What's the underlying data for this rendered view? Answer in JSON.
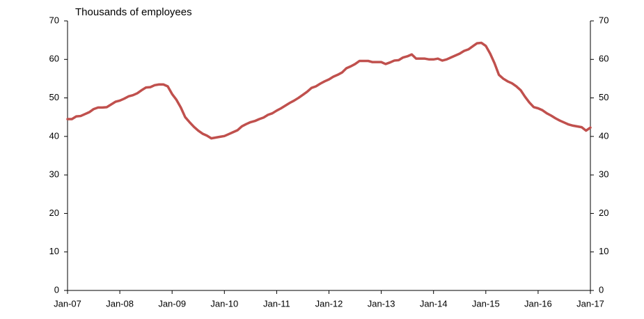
{
  "chart_data": {
    "type": "line",
    "y_label": "Thousands of employees",
    "categories": [
      "Jan-07",
      null,
      null,
      null,
      null,
      null,
      null,
      null,
      null,
      null,
      null,
      null,
      "Jan-08",
      null,
      null,
      null,
      null,
      null,
      null,
      null,
      null,
      null,
      null,
      null,
      "Jan-09",
      null,
      null,
      null,
      null,
      null,
      null,
      null,
      null,
      null,
      null,
      null,
      "Jan-10",
      null,
      null,
      null,
      null,
      null,
      null,
      null,
      null,
      null,
      null,
      null,
      "Jan-11",
      null,
      null,
      null,
      null,
      null,
      null,
      null,
      null,
      null,
      null,
      null,
      "Jan-12",
      null,
      null,
      null,
      null,
      null,
      null,
      null,
      null,
      null,
      null,
      null,
      "Jan-13",
      null,
      null,
      null,
      null,
      null,
      null,
      null,
      null,
      null,
      null,
      null,
      "Jan-14",
      null,
      null,
      null,
      null,
      null,
      null,
      null,
      null,
      null,
      null,
      null,
      "Jan-15",
      null,
      null,
      null,
      null,
      null,
      null,
      null,
      null,
      null,
      null,
      null,
      "Jan-16",
      null,
      null,
      null,
      null,
      null,
      null,
      null,
      null,
      null,
      null,
      null,
      "Jan-17"
    ],
    "series": [
      {
        "color": "#c0504d",
        "values": [
          44.5,
          44.5,
          45.2,
          45.3,
          45.8,
          46.3,
          47.1,
          47.5,
          47.5,
          47.6,
          48.3,
          49.0,
          49.3,
          49.8,
          50.4,
          50.7,
          51.2,
          52.0,
          52.7,
          52.8,
          53.3,
          53.5,
          53.5,
          53.0,
          51.0,
          49.5,
          47.5,
          45.0,
          43.7,
          42.5,
          41.5,
          40.7,
          40.2,
          39.5,
          39.7,
          39.9,
          40.1,
          40.6,
          41.1,
          41.6,
          42.6,
          43.2,
          43.7,
          44.0,
          44.5,
          44.9,
          45.6,
          46.0,
          46.7,
          47.3,
          48.0,
          48.7,
          49.3,
          50.0,
          50.8,
          51.6,
          52.6,
          53.0,
          53.7,
          54.3,
          54.8,
          55.5,
          56.0,
          56.6,
          57.7,
          58.2,
          58.8,
          59.6,
          59.6,
          59.6,
          59.3,
          59.3,
          59.3,
          58.8,
          59.2,
          59.7,
          59.8,
          60.5,
          60.8,
          61.3,
          60.2,
          60.2,
          60.2,
          60.0,
          60.0,
          60.2,
          59.7,
          60.0,
          60.5,
          61.0,
          61.5,
          62.2,
          62.6,
          63.4,
          64.2,
          64.3,
          63.5,
          61.5,
          59.0,
          56.0,
          55.0,
          54.3,
          53.8,
          53.0,
          52.0,
          50.3,
          48.8,
          47.6,
          47.3,
          46.8,
          46.0,
          45.4,
          44.7,
          44.1,
          43.6,
          43.1,
          42.8,
          42.6,
          42.4,
          41.5,
          42.3
        ]
      }
    ],
    "ylim": [
      0,
      70
    ],
    "yticks": [
      0,
      10,
      20,
      30,
      40,
      50,
      60,
      70
    ],
    "y2lim": [
      0,
      70
    ],
    "y2ticks": [
      0,
      10,
      20,
      30,
      40,
      50,
      60,
      70
    ]
  }
}
